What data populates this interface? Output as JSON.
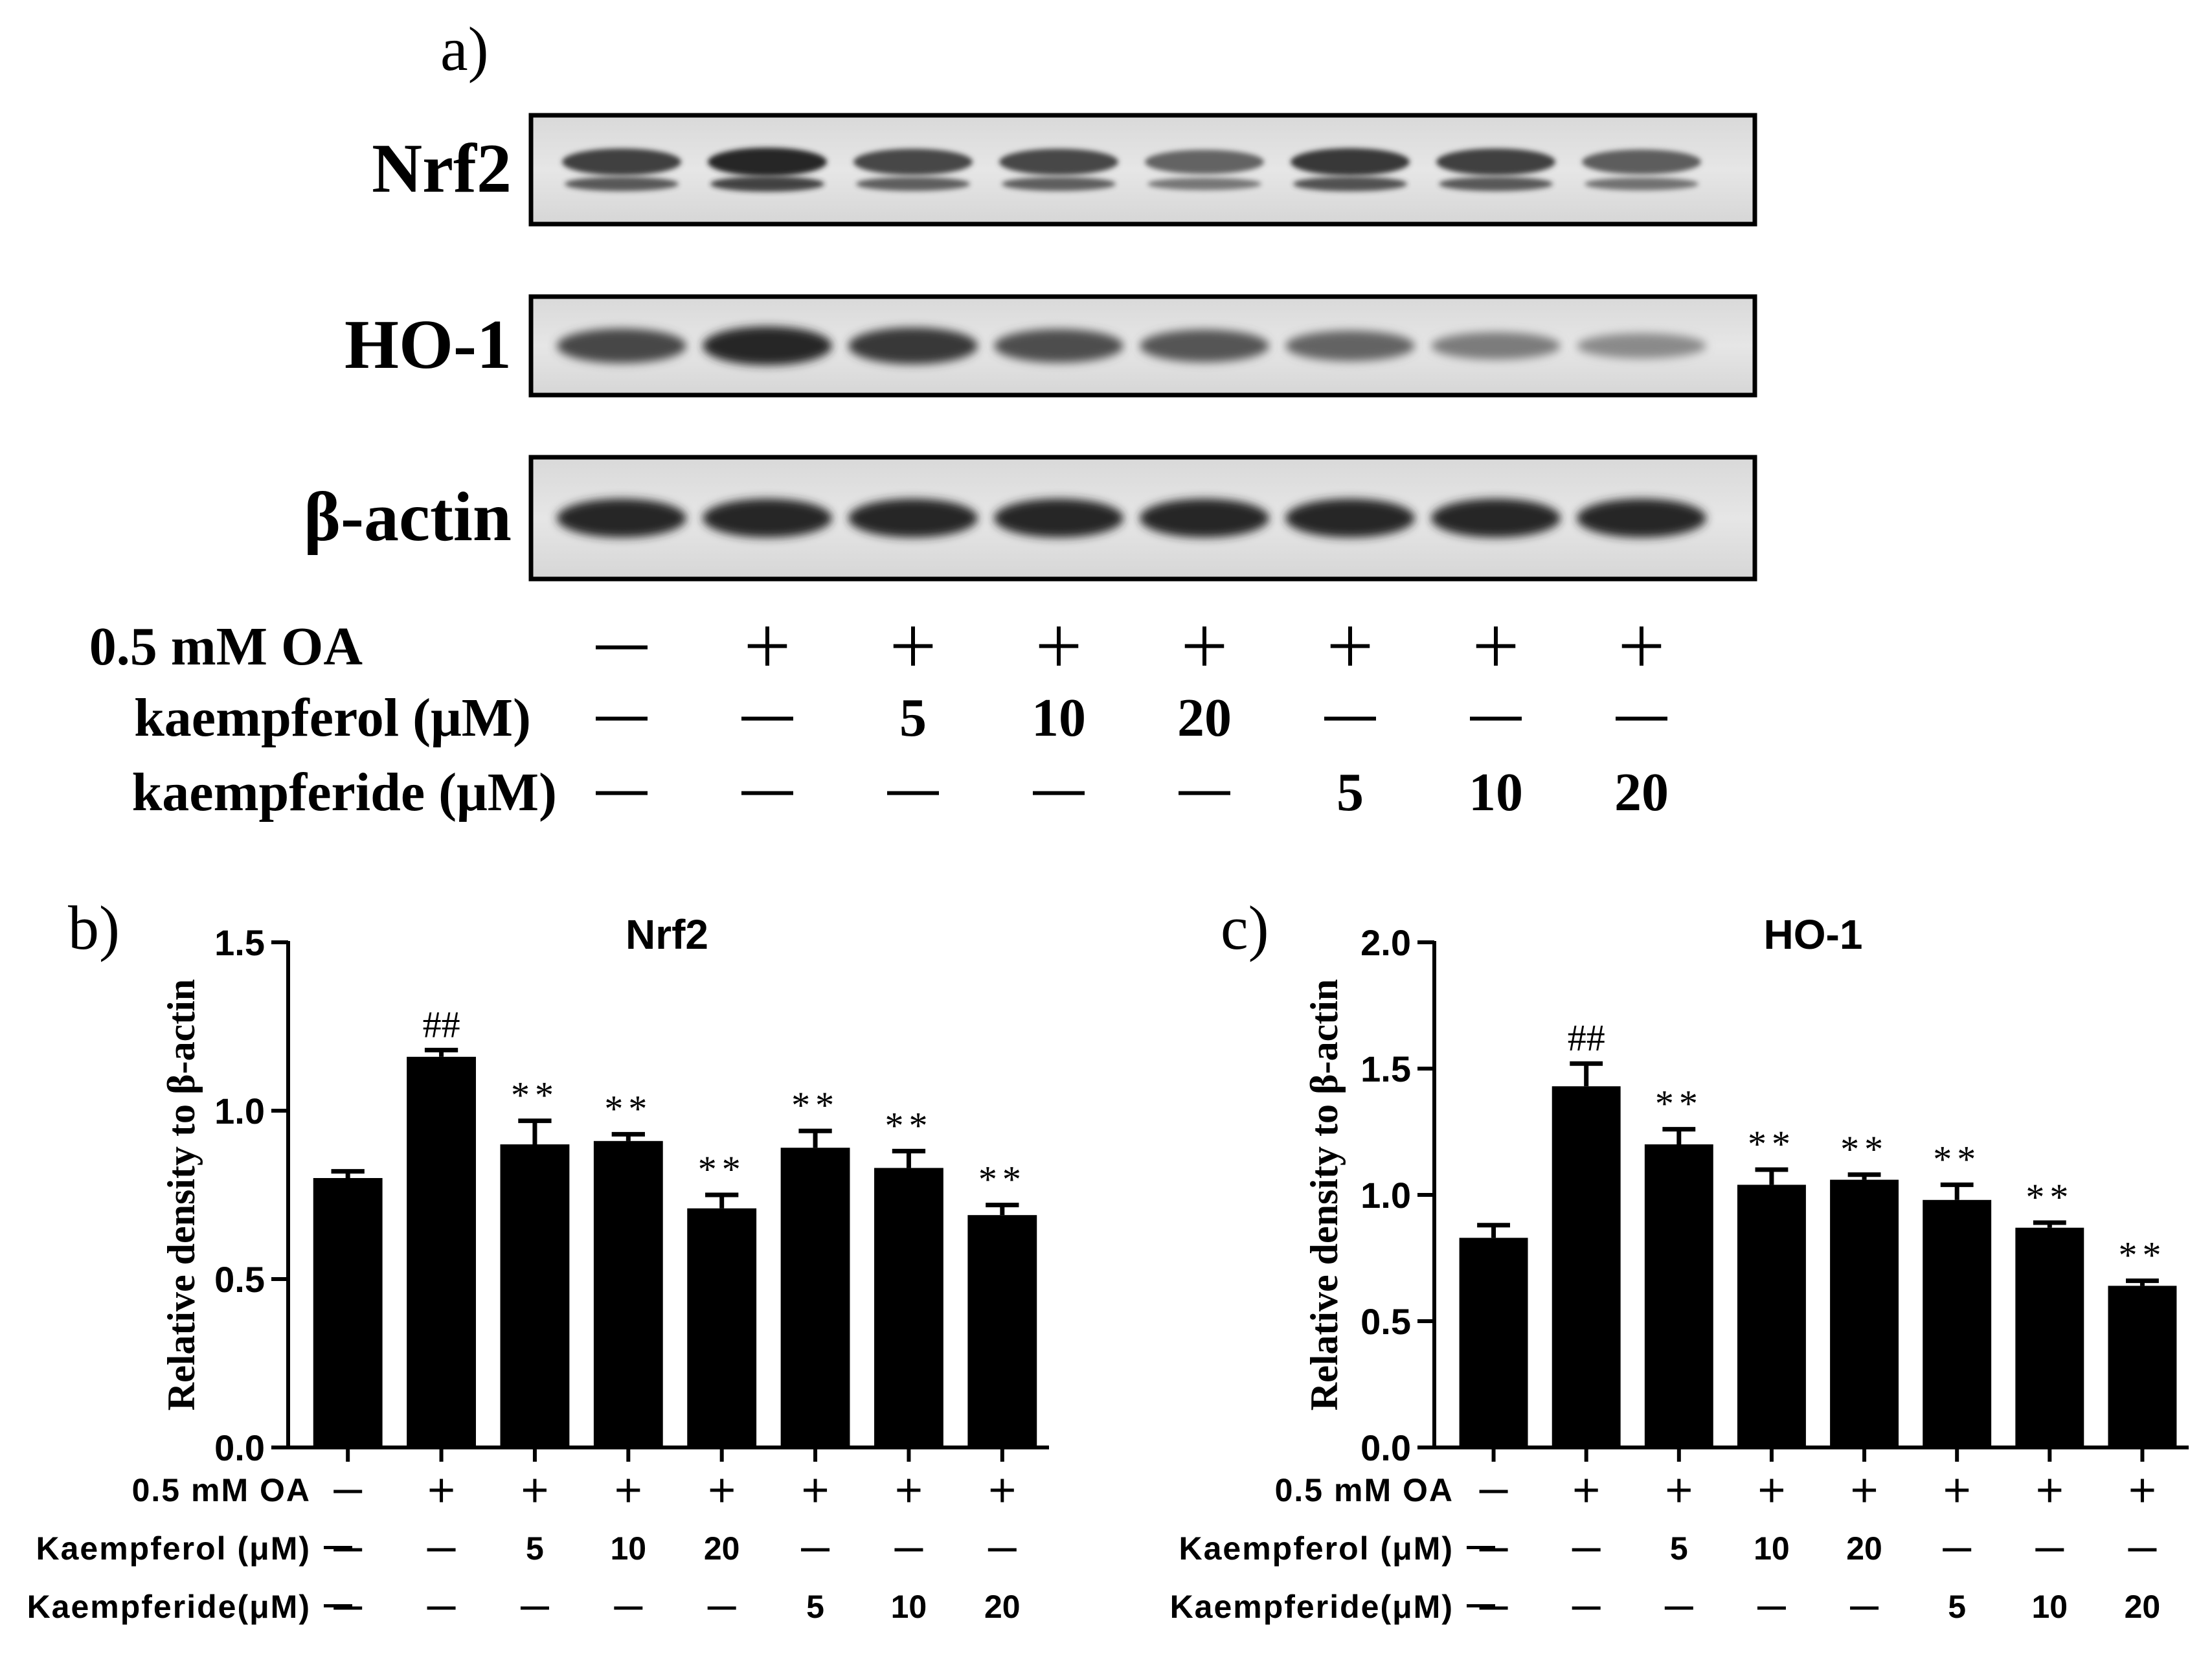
{
  "panel_a": {
    "label": "a)",
    "blots": [
      {
        "name": "Nrf2",
        "intensity": [
          0.85,
          1.0,
          0.8,
          0.8,
          0.6,
          0.9,
          0.85,
          0.65
        ],
        "double_band": true
      },
      {
        "name": "HO-1",
        "intensity": [
          0.8,
          1.0,
          0.9,
          0.75,
          0.7,
          0.6,
          0.45,
          0.35
        ],
        "double_band": false
      },
      {
        "name": "β-actin",
        "intensity": [
          1.0,
          1.0,
          1.0,
          1.0,
          1.0,
          1.0,
          1.0,
          1.0
        ],
        "double_band": false
      }
    ],
    "rows": [
      {
        "label": "0.5 mM OA",
        "values": [
          "—",
          "+",
          "+",
          "+",
          "+",
          "+",
          "+",
          "+"
        ]
      },
      {
        "label": "kaempferol (μM)",
        "values": [
          "—",
          "—",
          "5",
          "10",
          "20",
          "—",
          "—",
          "—"
        ]
      },
      {
        "label": "kaempferide (μM)",
        "values": [
          "—",
          "—",
          "—",
          "—",
          "—",
          "5",
          "10",
          "20"
        ]
      }
    ]
  },
  "chart_data": [
    {
      "panel": "b)",
      "type": "bar",
      "title": "Nrf2",
      "ylabel": "Relative density to β-actin",
      "ylim": [
        0,
        1.5
      ],
      "yticks": [
        0.0,
        0.5,
        1.0,
        1.5
      ],
      "ytick_labels": [
        "0.0",
        "0.5",
        "1.0",
        "1.5"
      ],
      "values": [
        0.8,
        1.16,
        0.9,
        0.91,
        0.71,
        0.89,
        0.83,
        0.69
      ],
      "errors": [
        0.02,
        0.02,
        0.07,
        0.02,
        0.04,
        0.05,
        0.05,
        0.03
      ],
      "annotations": [
        "",
        "##",
        "**",
        "**",
        "**",
        "**",
        "**",
        "**"
      ],
      "rows": [
        {
          "label": "0.5 mM OA",
          "values": [
            "—",
            "+",
            "+",
            "+",
            "+",
            "+",
            "+",
            "+"
          ]
        },
        {
          "label": "Kaempferol (μM)",
          "values": [
            "—",
            "—",
            "5",
            "10",
            "20",
            "—",
            "—",
            "—"
          ]
        },
        {
          "label": "Kaempferide(μM)",
          "values": [
            "—",
            "—",
            "—",
            "—",
            "—",
            "5",
            "10",
            "20"
          ]
        }
      ]
    },
    {
      "panel": "c)",
      "type": "bar",
      "title": "HO-1",
      "ylabel": "Relative density to β-actin",
      "ylim": [
        0,
        2.0
      ],
      "yticks": [
        0.0,
        0.5,
        1.0,
        1.5,
        2.0
      ],
      "ytick_labels": [
        "0.0",
        "0.5",
        "1.0",
        "1.5",
        "2.0"
      ],
      "values": [
        0.83,
        1.43,
        1.2,
        1.04,
        1.06,
        0.98,
        0.87,
        0.64
      ],
      "errors": [
        0.05,
        0.09,
        0.06,
        0.06,
        0.02,
        0.06,
        0.02,
        0.02
      ],
      "annotations": [
        "",
        "##",
        "**",
        "**",
        "**",
        "**",
        "**",
        "**"
      ],
      "rows": [
        {
          "label": "0.5 mM OA",
          "values": [
            "—",
            "+",
            "+",
            "+",
            "+",
            "+",
            "+",
            "+"
          ]
        },
        {
          "label": "Kaempferol (μM)",
          "values": [
            "—",
            "—",
            "5",
            "10",
            "20",
            "—",
            "—",
            "—"
          ]
        },
        {
          "label": "Kaempferide(μM)",
          "values": [
            "—",
            "—",
            "—",
            "—",
            "—",
            "5",
            "10",
            "20"
          ]
        }
      ]
    }
  ]
}
